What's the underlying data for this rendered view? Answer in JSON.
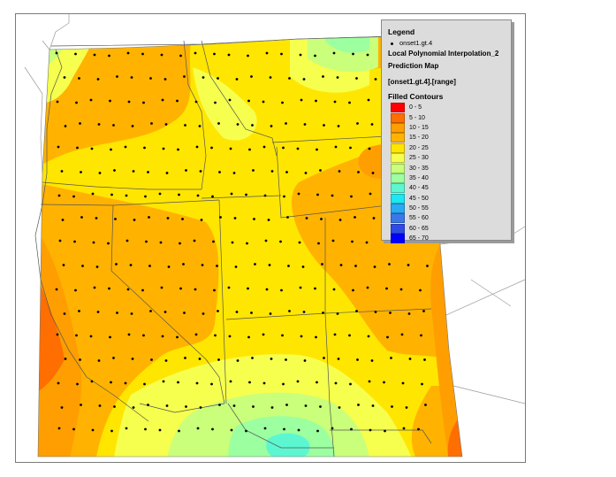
{
  "legend": {
    "title": "Legend",
    "point_label": "onset1.gt.4",
    "layer_name": "Local Polynomial Interpolation_2",
    "map_type": "Prediction Map",
    "field": "[onset1.gt.4].[range]",
    "filled_title": "Filled Contours",
    "classes": [
      {
        "label": "0 - 5",
        "color": "#ff0000"
      },
      {
        "label": "5 - 10",
        "color": "#ff6e00"
      },
      {
        "label": "10 - 15",
        "color": "#ff9e00"
      },
      {
        "label": "15 - 20",
        "color": "#ffb300"
      },
      {
        "label": "20 - 25",
        "color": "#ffe600"
      },
      {
        "label": "25 - 30",
        "color": "#f6ff4d"
      },
      {
        "label": "30 - 35",
        "color": "#c9ff7a"
      },
      {
        "label": "35 - 40",
        "color": "#9cffa0"
      },
      {
        "label": "40 - 45",
        "color": "#5cf7d0"
      },
      {
        "label": "45 - 50",
        "color": "#1ee6f2"
      },
      {
        "label": "50 - 55",
        "color": "#2aaaf0"
      },
      {
        "label": "55 - 60",
        "color": "#3a78ea"
      },
      {
        "label": "60 - 65",
        "color": "#2e4be6"
      },
      {
        "label": "65 - 70",
        "color": "#0000ff"
      }
    ]
  },
  "colors": {
    "background_fill": "#ffe600",
    "outline": "#555555",
    "point": "#000000"
  }
}
